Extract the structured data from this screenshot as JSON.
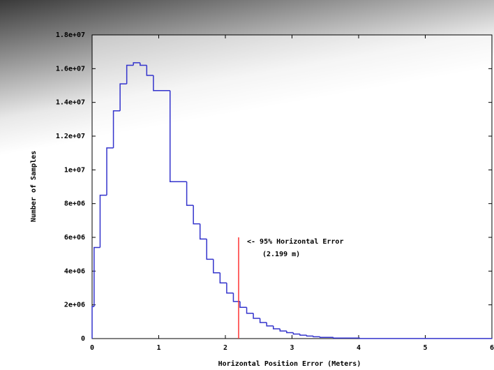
{
  "chart_data": {
    "type": "histogram",
    "x_label": "Horizontal Position Error (Meters)",
    "y_label": "Number of Samples",
    "bins": [
      0,
      0.03,
      0.12,
      0.22,
      0.32,
      0.42,
      0.52,
      0.62,
      0.72,
      0.82,
      0.92,
      1.17,
      1.42,
      1.52,
      1.62,
      1.72,
      1.82,
      1.92,
      2.02,
      2.12,
      2.22,
      2.32,
      2.42,
      2.52,
      2.62,
      2.72,
      2.82,
      2.92,
      3.02,
      3.12,
      3.22,
      3.32,
      3.42,
      3.62,
      4.02,
      6
    ],
    "values": [
      1900000,
      5400000,
      8500000,
      11300000,
      13500000,
      15100000,
      16200000,
      16350000,
      16200000,
      15600000,
      14700000,
      9300000,
      7900000,
      6800000,
      5900000,
      4700000,
      3900000,
      3300000,
      2700000,
      2200000,
      1850000,
      1500000,
      1200000,
      950000,
      750000,
      580000,
      450000,
      350000,
      270000,
      200000,
      150000,
      110000,
      70000,
      30000,
      5000
    ],
    "color": "#3333cc",
    "xlim": [
      0,
      6
    ],
    "xticks": [
      0,
      1,
      2,
      3,
      4,
      5,
      6
    ],
    "ylim": [
      0,
      18000000
    ],
    "yticks": [
      0,
      {
        "value": 2000000,
        "label": "2e+06"
      },
      {
        "value": 4000000,
        "label": "4e+06"
      },
      {
        "value": 6000000,
        "label": "6e+06"
      },
      {
        "value": 8000000,
        "label": "8e+06"
      },
      {
        "value": 10000000,
        "label": "1e+07"
      },
      {
        "value": 12000000,
        "label": "1.2e+07"
      },
      {
        "value": 14000000,
        "label": "1.4e+07"
      },
      {
        "value": 16000000,
        "label": "1.6e+07"
      },
      {
        "value": 18000000,
        "label": "1.8e+07"
      }
    ],
    "grid": false,
    "annotation": {
      "x": 2.199,
      "y_top": 6000000,
      "color": "#ff3333",
      "text": "<- 95% Horizontal Error",
      "subtext": "(2.199 m)"
    }
  }
}
